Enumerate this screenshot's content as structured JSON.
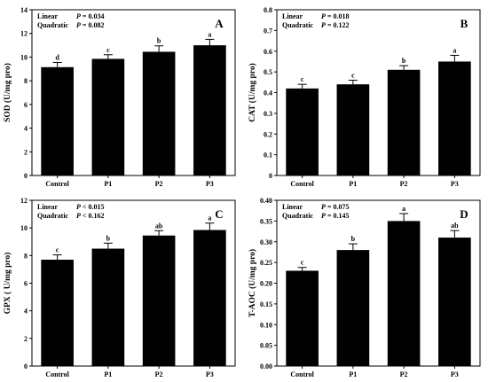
{
  "chart_data": [
    {
      "type": "bar",
      "panel_label": "A",
      "categories": [
        "Control",
        "P1",
        "P2",
        "P3"
      ],
      "values": [
        9.15,
        9.85,
        10.45,
        11.0
      ],
      "errors": [
        0.4,
        0.35,
        0.5,
        0.5
      ],
      "significance": [
        "d",
        "c",
        "b",
        "a"
      ],
      "ylabel": "SOD (U/mg pro)",
      "ylim": [
        0,
        14
      ],
      "yticks": [
        0,
        2,
        4,
        6,
        8,
        10,
        12,
        14
      ],
      "stats": [
        {
          "name": "Linear",
          "p_label": "P",
          "p_value": "= 0.034"
        },
        {
          "name": "Quadratic",
          "p_label": "P",
          "p_value": "= 0.082"
        }
      ]
    },
    {
      "type": "bar",
      "panel_label": "B",
      "categories": [
        "Control",
        "P1",
        "P2",
        "P3"
      ],
      "values": [
        0.42,
        0.44,
        0.51,
        0.55
      ],
      "errors": [
        0.02,
        0.02,
        0.02,
        0.03
      ],
      "significance": [
        "c",
        "c",
        "b",
        "a"
      ],
      "ylabel": "CAT (U/mg pro)",
      "ylim": [
        0,
        0.8
      ],
      "yticks": [
        0.0,
        0.1,
        0.2,
        0.3,
        0.4,
        0.5,
        0.6,
        0.7,
        0.8
      ],
      "stats": [
        {
          "name": "Linear",
          "p_label": "P",
          "p_value": "= 0.018"
        },
        {
          "name": "Quadratic",
          "p_label": "P",
          "p_value": "= 0.122"
        }
      ]
    },
    {
      "type": "bar",
      "panel_label": "C",
      "categories": [
        "Control",
        "P1",
        "P2",
        "P3"
      ],
      "values": [
        7.7,
        8.5,
        9.45,
        9.85
      ],
      "errors": [
        0.35,
        0.4,
        0.35,
        0.5
      ],
      "significance": [
        "c",
        "b",
        "ab",
        "a"
      ],
      "ylabel": "GPX ( U/mg pro)",
      "ylim": [
        0,
        12
      ],
      "yticks": [
        0,
        2,
        4,
        6,
        8,
        10,
        12
      ],
      "stats": [
        {
          "name": "Linear",
          "p_label": "P",
          "p_value": "< 0.015"
        },
        {
          "name": "Quadratic",
          "p_label": "P",
          "p_value": "< 0.162"
        }
      ]
    },
    {
      "type": "bar",
      "panel_label": "D",
      "categories": [
        "Control",
        "P1",
        "P2",
        "P3"
      ],
      "values": [
        0.23,
        0.28,
        0.35,
        0.31
      ],
      "errors": [
        0.008,
        0.015,
        0.018,
        0.017
      ],
      "significance": [
        "c",
        "b",
        "a",
        "ab"
      ],
      "ylabel": "T-AOC (U/mg pro)",
      "ylim": [
        0,
        0.4
      ],
      "yticks": [
        0.0,
        0.05,
        0.1,
        0.15,
        0.2,
        0.25,
        0.3,
        0.35,
        0.4
      ],
      "ytick_labels": [
        "0.00",
        "0.05",
        "0.10",
        "0.15",
        "0.20",
        "0.25",
        "0.30",
        "0.35",
        "0.40"
      ],
      "stats": [
        {
          "name": "Linear",
          "p_label": "P",
          "p_value": "= 0.075"
        },
        {
          "name": "Quadratic",
          "p_label": "P",
          "p_value": "= 0.145"
        }
      ]
    }
  ]
}
